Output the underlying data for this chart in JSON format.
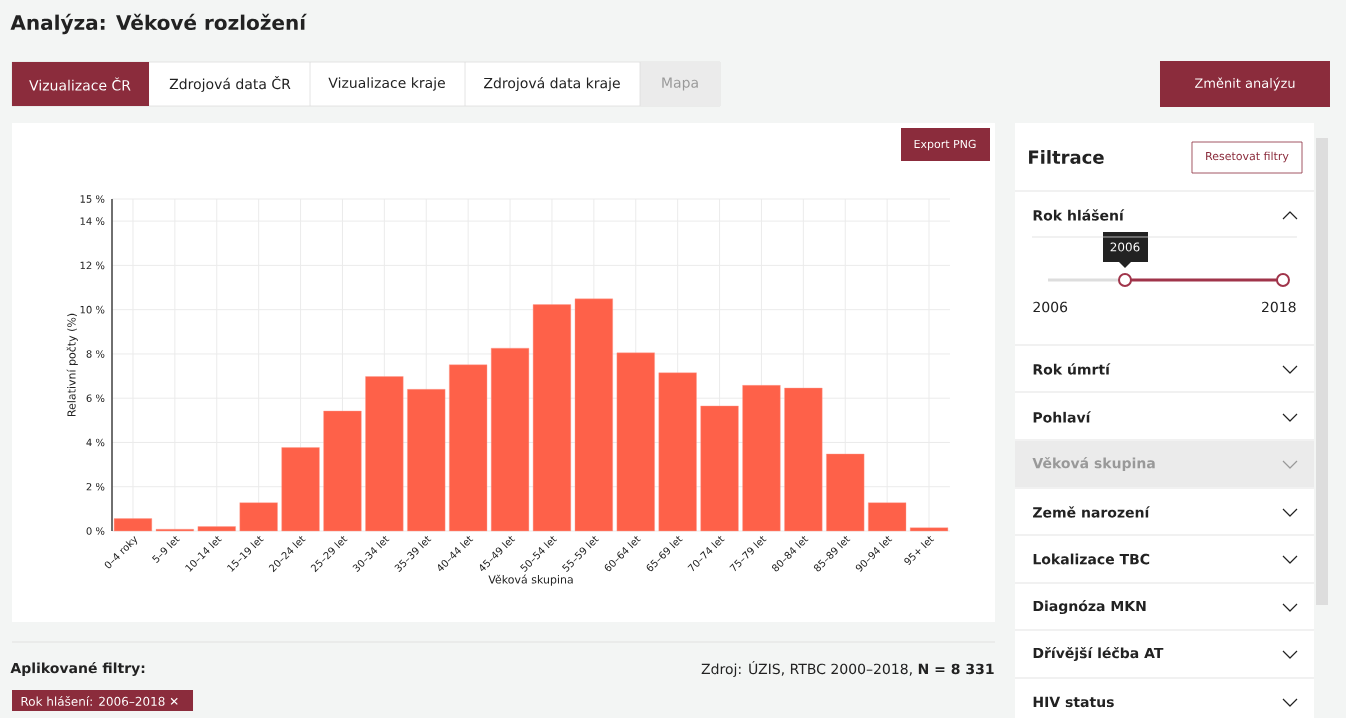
{
  "chart_data": {
    "type": "bar",
    "title": "Analýza: Věkové rozložení",
    "xlabel": "Věková skupina",
    "ylabel": "Relativní počty (%)",
    "categories": [
      "0–4 roky",
      "5–9 let",
      "10–14 let",
      "15–19 let",
      "20–24 let",
      "25–29 let",
      "30–34 let",
      "35–39 let",
      "40–44 let",
      "45–49 let",
      "50–54 let",
      "55–59 let",
      "60–64 let",
      "65–69 let",
      "70–74 let",
      "75–79 let",
      "80–84 let",
      "85–89 let",
      "90–94 let",
      "95+ let"
    ],
    "values": [
      0.56,
      0.08,
      0.2,
      1.28,
      3.77,
      5.42,
      6.98,
      6.4,
      7.51,
      8.26,
      10.23,
      10.49,
      8.05,
      7.15,
      5.65,
      6.58,
      6.46,
      3.48,
      1.28,
      0.15
    ],
    "color": "#fe6149",
    "ylim": [
      0,
      15
    ],
    "yticks": [
      {
        "value": 0,
        "label": "0 %"
      },
      {
        "value": 2,
        "label": "2 %"
      },
      {
        "value": 4,
        "label": "4 %"
      },
      {
        "value": 6,
        "label": "6 %"
      },
      {
        "value": 8,
        "label": "8 %"
      },
      {
        "value": 10,
        "label": "10 %"
      },
      {
        "value": 12,
        "label": "12 %"
      },
      {
        "value": 14,
        "label": "14 %"
      },
      {
        "value": 15,
        "label": "15 %"
      }
    ],
    "grid": true,
    "annotations": [
      "Vizualizace ČR",
      "Zdrojová data ČR",
      "Vizualizace kraje",
      "Zdrojová data kraje",
      "Mapa",
      "Změnit analýzu",
      "Export PNG",
      "Filtrace",
      "Resetovat filtry",
      "Rok hlášení",
      "2006",
      "2006",
      "2018",
      "Rok úmrtí",
      "Pohlaví",
      "Věková skupina",
      "Země narození",
      "Lokalizace TBC",
      "Diagnóza MKN",
      "Dřívější léčba AT",
      "HIV status",
      "Aplikované filtry:",
      "Zdroj: ÚZIS, RTBC 2000–2018, **N = 8 331**",
      "Rok hlášení: 2006–2018 ✕"
    ]
  }
}
